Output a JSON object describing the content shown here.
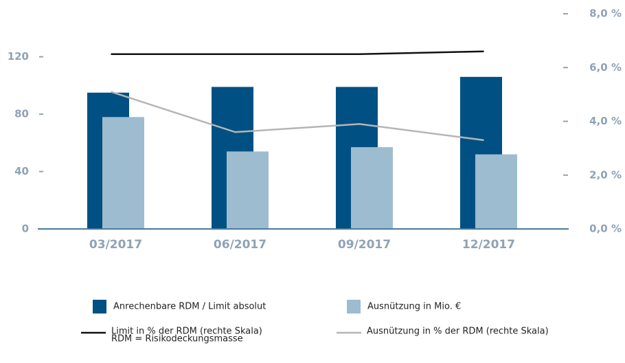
{
  "chart_data": {
    "type": "bar_line",
    "categories": [
      "03/2017",
      "06/2017",
      "09/2017",
      "12/2017"
    ],
    "series": [
      {
        "name": "Anrechenbare RDM / Limit absolut",
        "type": "bar",
        "color": "#005083",
        "values": [
          95,
          99,
          99,
          106
        ]
      },
      {
        "name": "Ausnützung in Mio. €",
        "type": "bar",
        "color": "#9dbccf",
        "values": [
          78,
          54,
          57,
          52
        ]
      },
      {
        "name": "Limit in % der RDM (rechte Skala)",
        "type": "line",
        "axis": "y2",
        "color": "#111111",
        "values": [
          6.5,
          6.5,
          6.5,
          6.6
        ]
      },
      {
        "name": "Ausnützung in % der RDM (rechte Skala)",
        "type": "line",
        "axis": "y2",
        "color": "#b5b5b5",
        "values": [
          5.1,
          3.6,
          3.9,
          3.3
        ]
      }
    ],
    "ylim": [
      0,
      150
    ],
    "yticks": [
      0,
      40,
      80,
      120
    ],
    "y2lim": [
      0,
      8
    ],
    "y2ticks": [
      {
        "value": 0,
        "label": "0,0 %"
      },
      {
        "value": 2,
        "label": "2,0 %"
      },
      {
        "value": 4,
        "label": "4,0 %"
      },
      {
        "value": 6,
        "label": "6,0 %"
      },
      {
        "value": 8,
        "label": "8,0 %"
      }
    ],
    "annotation": "RDM = Risikodeckungsmasse"
  }
}
